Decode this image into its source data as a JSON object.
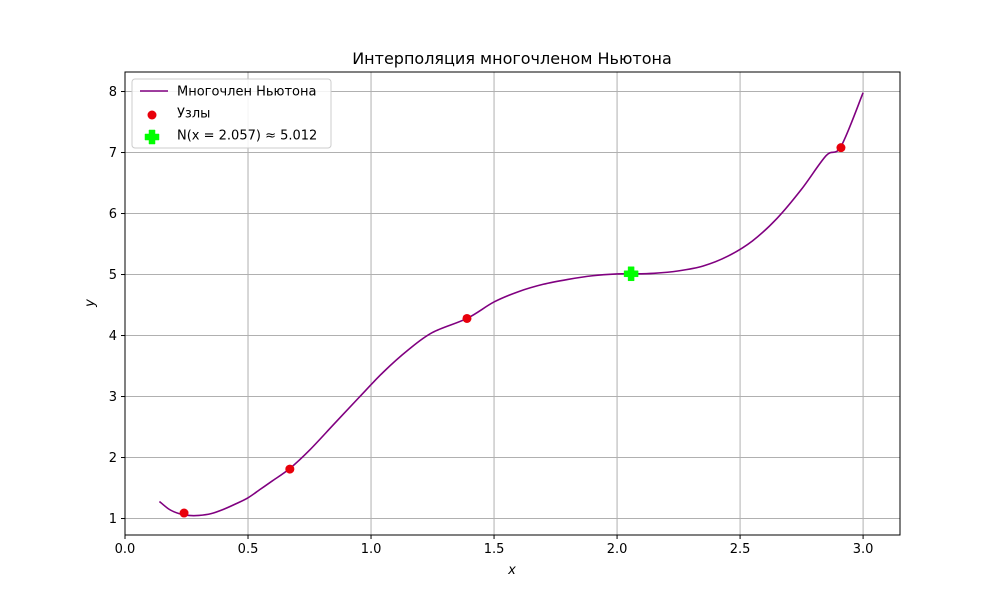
{
  "chart_data": {
    "type": "line",
    "title": "Интерполяция многочленом Ньютона",
    "xlabel": "x",
    "ylabel": "y",
    "xlim": [
      0.0,
      3.15
    ],
    "ylim": [
      0.73,
      8.32
    ],
    "xticks": [
      0.0,
      0.5,
      1.0,
      1.5,
      2.0,
      2.5,
      3.0
    ],
    "xtick_labels": [
      "0.0",
      "0.5",
      "1.0",
      "1.5",
      "2.0",
      "2.5",
      "3.0"
    ],
    "yticks": [
      1,
      2,
      3,
      4,
      5,
      6,
      7,
      8
    ],
    "ytick_labels": [
      "1",
      "2",
      "3",
      "4",
      "5",
      "6",
      "7",
      "8"
    ],
    "grid": true,
    "legend_position": "top-left",
    "series": [
      {
        "name": "Многочлен Ньютона",
        "kind": "line",
        "color": "#800080",
        "x": [
          0.14,
          0.18,
          0.22,
          0.26,
          0.3,
          0.35,
          0.4,
          0.45,
          0.5,
          0.55,
          0.6,
          0.67,
          0.75,
          0.85,
          0.95,
          1.05,
          1.15,
          1.25,
          1.39,
          1.5,
          1.6,
          1.7,
          1.8,
          1.9,
          2.0,
          2.06,
          2.15,
          2.25,
          2.35,
          2.45,
          2.55,
          2.65,
          2.75,
          2.85,
          2.91,
          3.0
        ],
        "y": [
          1.28,
          1.15,
          1.08,
          1.05,
          1.05,
          1.08,
          1.15,
          1.24,
          1.34,
          1.48,
          1.62,
          1.82,
          2.12,
          2.55,
          2.98,
          3.4,
          3.76,
          4.05,
          4.28,
          4.55,
          4.72,
          4.84,
          4.92,
          4.98,
          5.01,
          5.01,
          5.02,
          5.06,
          5.14,
          5.3,
          5.55,
          5.92,
          6.4,
          6.95,
          7.1,
          7.98
        ]
      },
      {
        "name": "Узлы",
        "kind": "scatter",
        "color": "#e8000b",
        "x": [
          0.24,
          0.67,
          1.39,
          2.91
        ],
        "y": [
          1.09,
          1.81,
          4.28,
          7.08
        ]
      },
      {
        "name": "N(x = 2.057) ≈ 5.012",
        "kind": "marker",
        "marker": "plus",
        "color": "#00ff00",
        "x": [
          2.057
        ],
        "y": [
          5.012
        ]
      }
    ]
  }
}
